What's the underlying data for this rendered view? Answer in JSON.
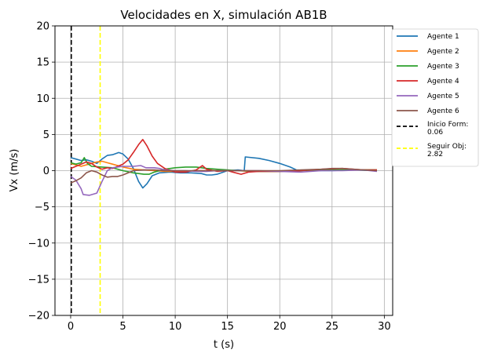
{
  "chart_data": {
    "type": "line",
    "title": "Velocidades en X, simulación AB1B",
    "xlabel": "t (s)",
    "ylabel": "Vx (m/s)",
    "xlim": [
      -1.5,
      30.8
    ],
    "ylim": [
      -20,
      20
    ],
    "xticks": [
      0,
      5,
      10,
      15,
      20,
      25,
      30
    ],
    "yticks": [
      -20,
      -15,
      -10,
      -5,
      0,
      5,
      10,
      15,
      20
    ],
    "xtick_labels": [
      "0",
      "5",
      "10",
      "15",
      "20",
      "25",
      "30"
    ],
    "ytick_labels": [
      "−20",
      "−15",
      "−10",
      "−5",
      "0",
      "5",
      "10",
      "15",
      "20"
    ],
    "grid": true,
    "legend_placement": "outside-right-top",
    "series": [
      {
        "name": "Agente 1",
        "color": "#1f77b4",
        "points": [
          [
            0,
            1.8
          ],
          [
            0.5,
            1.6
          ],
          [
            1,
            1.4
          ],
          [
            1.5,
            1.5
          ],
          [
            2,
            1.3
          ],
          [
            2.5,
            1.0
          ],
          [
            3,
            1.6
          ],
          [
            3.5,
            2.1
          ],
          [
            4,
            2.2
          ],
          [
            4.6,
            2.5
          ],
          [
            5,
            2.3
          ],
          [
            5.5,
            1.6
          ],
          [
            6,
            0.3
          ],
          [
            6.5,
            -1.5
          ],
          [
            6.9,
            -2.4
          ],
          [
            7.3,
            -1.8
          ],
          [
            7.8,
            -0.7
          ],
          [
            8.5,
            -0.3
          ],
          [
            9.5,
            -0.2
          ],
          [
            10.5,
            -0.3
          ],
          [
            11.5,
            -0.3
          ],
          [
            12.5,
            -0.4
          ],
          [
            13,
            -0.6
          ],
          [
            13.5,
            -0.6
          ],
          [
            14,
            -0.5
          ],
          [
            15,
            0.0
          ],
          [
            16,
            0.1
          ],
          [
            16.6,
            0.0
          ],
          [
            16.7,
            1.9
          ],
          [
            18,
            1.7
          ],
          [
            19,
            1.4
          ],
          [
            20,
            1.0
          ],
          [
            21,
            0.5
          ],
          [
            21.6,
            0.1
          ],
          [
            23,
            0.0
          ],
          [
            25,
            0.0
          ],
          [
            27,
            0.1
          ],
          [
            29.3,
            0.0
          ]
        ]
      },
      {
        "name": "Agente 2",
        "color": "#ff7f0e",
        "points": [
          [
            0,
            1.0
          ],
          [
            0.5,
            0.8
          ],
          [
            1,
            0.6
          ],
          [
            1.5,
            0.8
          ],
          [
            2,
            1.0
          ],
          [
            2.5,
            1.2
          ],
          [
            3,
            1.3
          ],
          [
            3.5,
            1.1
          ],
          [
            4,
            0.9
          ],
          [
            5,
            0.5
          ],
          [
            6,
            0.2
          ],
          [
            7,
            0.1
          ],
          [
            8,
            0.0
          ],
          [
            9,
            -0.1
          ],
          [
            10,
            -0.1
          ],
          [
            11,
            -0.1
          ],
          [
            12,
            0.0
          ],
          [
            13,
            0.0
          ],
          [
            14,
            0.0
          ],
          [
            15,
            0.0
          ],
          [
            16,
            0.0
          ],
          [
            17,
            -0.1
          ],
          [
            18,
            -0.1
          ],
          [
            19,
            -0.1
          ],
          [
            20,
            -0.1
          ],
          [
            22,
            0.0
          ],
          [
            24,
            0.1
          ],
          [
            26,
            0.1
          ],
          [
            28,
            0.1
          ],
          [
            29.3,
            0.1
          ]
        ]
      },
      {
        "name": "Agente 3",
        "color": "#2ca02c",
        "points": [
          [
            0,
            1.1
          ],
          [
            0.5,
            0.9
          ],
          [
            1,
            1.1
          ],
          [
            1.3,
            1.8
          ],
          [
            1.6,
            1.0
          ],
          [
            2,
            0.6
          ],
          [
            3,
            0.5
          ],
          [
            4,
            0.4
          ],
          [
            5,
            0.0
          ],
          [
            6,
            -0.3
          ],
          [
            7,
            -0.5
          ],
          [
            7.5,
            -0.5
          ],
          [
            8,
            -0.2
          ],
          [
            9,
            0.2
          ],
          [
            10,
            0.4
          ],
          [
            11,
            0.5
          ],
          [
            12,
            0.5
          ],
          [
            13,
            0.3
          ],
          [
            14,
            0.2
          ],
          [
            15,
            0.1
          ],
          [
            16,
            0.0
          ],
          [
            18,
            -0.1
          ],
          [
            20,
            -0.1
          ],
          [
            22,
            0.0
          ],
          [
            24,
            0.1
          ],
          [
            26,
            0.1
          ],
          [
            28,
            0.1
          ],
          [
            29.3,
            0.1
          ]
        ]
      },
      {
        "name": "Agente 4",
        "color": "#d62728",
        "points": [
          [
            0,
            0.3
          ],
          [
            0.5,
            0.6
          ],
          [
            1,
            0.9
          ],
          [
            1.5,
            1.2
          ],
          [
            2,
            1.0
          ],
          [
            2.5,
            0.5
          ],
          [
            3,
            0.2
          ],
          [
            3.5,
            0.4
          ],
          [
            4,
            0.3
          ],
          [
            5,
            0.9
          ],
          [
            5.5,
            1.5
          ],
          [
            6,
            2.5
          ],
          [
            6.5,
            3.6
          ],
          [
            6.9,
            4.3
          ],
          [
            7.3,
            3.4
          ],
          [
            7.8,
            2.0
          ],
          [
            8.3,
            1.0
          ],
          [
            9,
            0.3
          ],
          [
            10,
            -0.2
          ],
          [
            11,
            -0.2
          ],
          [
            12,
            0.1
          ],
          [
            12.6,
            0.7
          ],
          [
            13,
            0.2
          ],
          [
            14,
            -0.1
          ],
          [
            15,
            0.0
          ],
          [
            15.5,
            -0.2
          ],
          [
            16.3,
            -0.5
          ],
          [
            17,
            -0.2
          ],
          [
            18,
            -0.1
          ],
          [
            20,
            -0.1
          ],
          [
            22,
            0.0
          ],
          [
            24,
            0.2
          ],
          [
            26,
            0.3
          ],
          [
            28,
            0.1
          ],
          [
            29.3,
            0.1
          ]
        ]
      },
      {
        "name": "Agente 5",
        "color": "#9467bd",
        "points": [
          [
            0,
            -0.8
          ],
          [
            0.5,
            -1.3
          ],
          [
            1,
            -2.5
          ],
          [
            1.2,
            -3.3
          ],
          [
            1.8,
            -3.4
          ],
          [
            2.5,
            -3.1
          ],
          [
            3,
            -1.5
          ],
          [
            3.5,
            0.0
          ],
          [
            4,
            0.4
          ],
          [
            5,
            0.6
          ],
          [
            6,
            0.6
          ],
          [
            6.7,
            0.7
          ],
          [
            7.2,
            0.4
          ],
          [
            8,
            0.4
          ],
          [
            8.5,
            0.3
          ],
          [
            9,
            0.1
          ],
          [
            10,
            0.0
          ],
          [
            11,
            0.0
          ],
          [
            12,
            -0.1
          ],
          [
            13,
            -0.1
          ],
          [
            14,
            0.0
          ],
          [
            15,
            0.0
          ],
          [
            16,
            0.0
          ],
          [
            18,
            0.0
          ],
          [
            20,
            -0.1
          ],
          [
            22,
            -0.2
          ],
          [
            24,
            0.0
          ],
          [
            26,
            0.0
          ],
          [
            28,
            0.1
          ],
          [
            29.3,
            -0.1
          ]
        ]
      },
      {
        "name": "Agente 6",
        "color": "#8c564b",
        "points": [
          [
            0,
            -1.7
          ],
          [
            0.5,
            -1.4
          ],
          [
            1,
            -1.0
          ],
          [
            1.5,
            -0.3
          ],
          [
            2,
            0.0
          ],
          [
            2.5,
            -0.2
          ],
          [
            3,
            -0.6
          ],
          [
            3.5,
            -0.9
          ],
          [
            4,
            -0.8
          ],
          [
            4.5,
            -0.8
          ],
          [
            5,
            -0.6
          ],
          [
            5.5,
            -0.3
          ],
          [
            6,
            0.0
          ],
          [
            7,
            0.1
          ],
          [
            8,
            0.1
          ],
          [
            9,
            0.0
          ],
          [
            10,
            0.0
          ],
          [
            11,
            0.0
          ],
          [
            12,
            0.0
          ],
          [
            13,
            0.0
          ],
          [
            14,
            0.0
          ],
          [
            15,
            0.0
          ],
          [
            16,
            0.0
          ],
          [
            18,
            0.0
          ],
          [
            20,
            0.0
          ],
          [
            22,
            0.1
          ],
          [
            24,
            0.2
          ],
          [
            25,
            0.3
          ],
          [
            26,
            0.3
          ],
          [
            27,
            0.2
          ],
          [
            28,
            0.1
          ],
          [
            29.3,
            0.0
          ]
        ]
      }
    ],
    "vlines": [
      {
        "name": "Inicio Form:\n0.06",
        "label_lines": [
          "Inicio Form:",
          "0.06"
        ],
        "x": 0.06,
        "color": "#000000",
        "style": "dashed"
      },
      {
        "name": "Seguir Obj:\n2.82",
        "label_lines": [
          "Seguir Obj:",
          "2.82"
        ],
        "x": 2.82,
        "color": "#ffff00",
        "style": "dashed"
      }
    ]
  }
}
